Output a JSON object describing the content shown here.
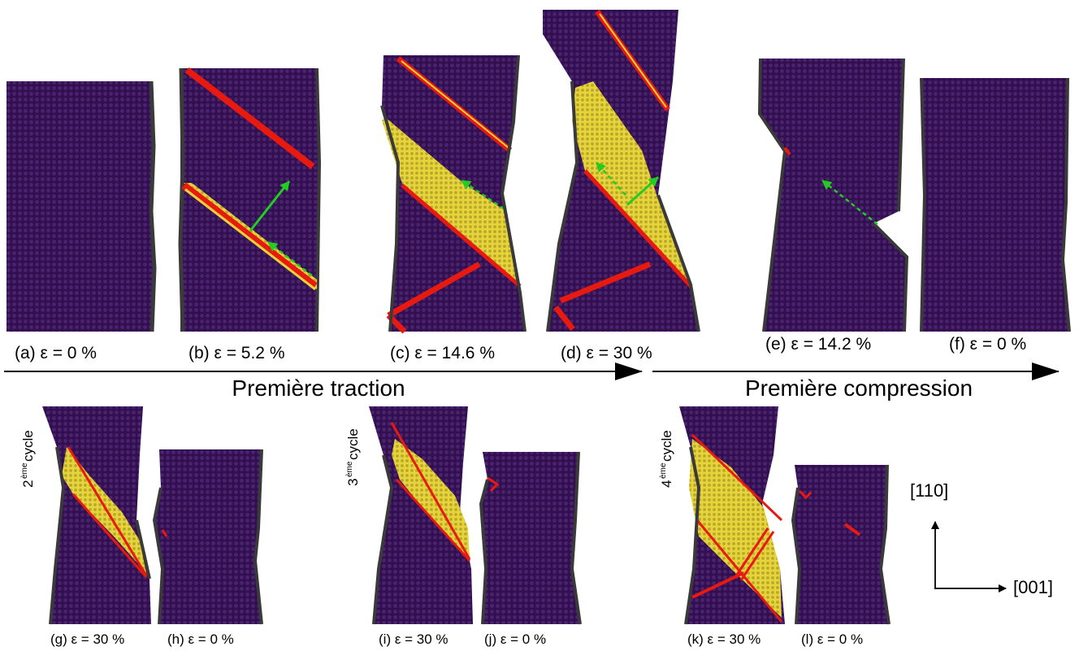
{
  "captions": {
    "a": "(a) ε = 0 %",
    "b": "(b) ε = 5.2 %",
    "c": "(c) ε = 14.6 %",
    "d": "(d) ε = 30 %",
    "e": "(e) ε = 14.2 %",
    "f": "(f) ε = 0 %",
    "g": "(g) ε = 30 %",
    "h": "(h) ε = 0 %",
    "i": "(i) ε = 30 %",
    "j": "(j) ε = 0 %",
    "k": "(k) ε = 30 %",
    "l": "(l) ε = 0 %"
  },
  "phases": {
    "traction": "Première traction",
    "compression": "Première compression"
  },
  "cycles": {
    "c2": {
      "num": "2",
      "sup": "ème",
      "word": "cycle"
    },
    "c3": {
      "num": "3",
      "sup": "ème",
      "word": "cycle"
    },
    "c4": {
      "num": "4",
      "sup": "ème",
      "word": "cycle"
    }
  },
  "axes": {
    "vertical": "[110]",
    "horizontal": "[001]"
  },
  "colors": {
    "matrix": "#32104f",
    "matrix_dots": "#4a2270",
    "surface": "#3a3a3a",
    "boundary": "#e81a10",
    "twin": "#e6d43a",
    "twin_dots": "#b8a82c",
    "arrow": "#22cc22"
  }
}
